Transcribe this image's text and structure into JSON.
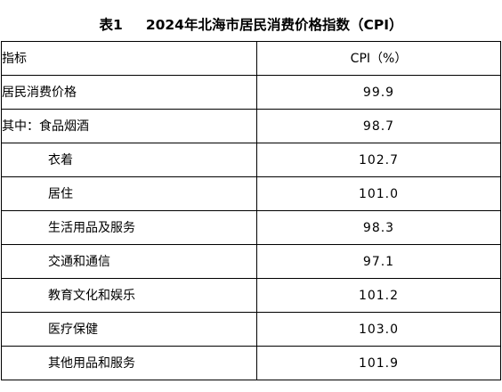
{
  "title": {
    "number": "表1",
    "text": "2024年北海市居民消费价格指数（CPI）"
  },
  "header": {
    "indicator": "指标",
    "cpi": "CPI（%）"
  },
  "rows": [
    {
      "label": "居民消费价格",
      "value": "99.9"
    },
    {
      "label": "其中：食品烟酒",
      "value": "98.7"
    },
    {
      "label": "衣着",
      "value": "102.7"
    },
    {
      "label": "居住",
      "value": "101.0"
    },
    {
      "label": "生活用品及服务",
      "value": "98.3"
    },
    {
      "label": "交通和通信",
      "value": "97.1"
    },
    {
      "label": "教育文化和娱乐",
      "value": "101.2"
    },
    {
      "label": "医疗保健",
      "value": "103.0"
    },
    {
      "label": "其他用品和服务",
      "value": "101.9"
    }
  ]
}
